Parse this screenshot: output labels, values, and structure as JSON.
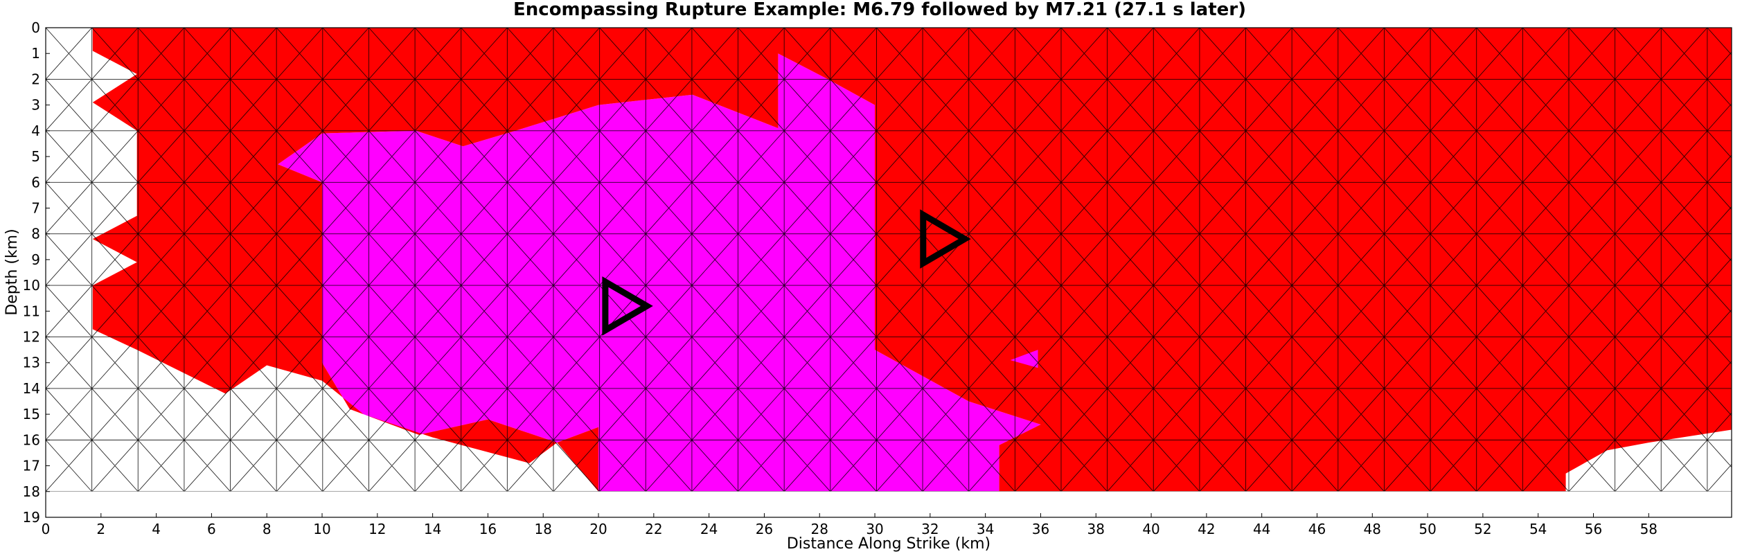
{
  "chart_data": {
    "type": "triangular-mesh-map",
    "title": "Encompassing Rupture Example: M6.79 followed by M7.21 (27.1 s later)",
    "xlabel": "Distance Along Strike (km)",
    "ylabel": "Depth (km)",
    "xlim": [
      0,
      61
    ],
    "ylim": [
      0,
      19
    ],
    "x_ticks": [
      "0",
      "2",
      "4",
      "6",
      "8",
      "10",
      "12",
      "14",
      "16",
      "18",
      "20",
      "22",
      "24",
      "26",
      "28",
      "30",
      "32",
      "34",
      "36",
      "38",
      "40",
      "42",
      "44",
      "46",
      "48",
      "50",
      "52",
      "54",
      "56",
      "58"
    ],
    "y_ticks": [
      "0",
      "1",
      "2",
      "3",
      "4",
      "5",
      "6",
      "7",
      "8",
      "9",
      "10",
      "11",
      "12",
      "13",
      "14",
      "15",
      "16",
      "17",
      "18",
      "19"
    ],
    "mesh": {
      "x_step_km": 1.67,
      "depth_step_km": 1.0,
      "x_extent_km": [
        0,
        61
      ],
      "depth_extent_km": [
        0,
        18
      ]
    },
    "colors": {
      "first_rupture": "#ff0000",
      "second_rupture": "#ff00ff",
      "unruptured": "#ffffff",
      "edge": "#000000",
      "unruptured_edge": "#9a9a9a"
    },
    "ruptures": [
      {
        "magnitude": "M6.79",
        "order": "first",
        "color": "#ff00ff",
        "hypocenter_km": [
          21.0,
          10.8
        ],
        "region_polygon": [
          [
            28.3,
            2.0
          ],
          [
            30.0,
            3.0
          ],
          [
            30.0,
            12.5
          ],
          [
            33.4,
            14.5
          ],
          [
            36.0,
            15.4
          ],
          [
            34.5,
            16.2
          ],
          [
            34.5,
            18
          ],
          [
            20.0,
            18
          ],
          [
            20.0,
            15.5
          ],
          [
            18.5,
            16.1
          ],
          [
            16.0,
            15.2
          ],
          [
            13.5,
            15.8
          ],
          [
            11.0,
            14.8
          ],
          [
            10.0,
            13.0
          ],
          [
            10.0,
            6.0
          ],
          [
            8.4,
            5.3
          ],
          [
            10.0,
            4.1
          ],
          [
            13.4,
            4.0
          ],
          [
            15.1,
            4.6
          ],
          [
            17.0,
            4.0
          ],
          [
            20.0,
            3.0
          ],
          [
            23.4,
            2.6
          ],
          [
            26.5,
            3.9
          ],
          [
            26.5,
            1.0
          ]
        ]
      },
      {
        "magnitude": "M7.21",
        "order": "second",
        "delay": "27.1 s later",
        "color": "#ff0000",
        "hypocenter_km": [
          32.5,
          8.2
        ],
        "region_polygon": [
          [
            1.7,
            0
          ],
          [
            61,
            0
          ],
          [
            61,
            15.6
          ],
          [
            58.0,
            16.1
          ],
          [
            56.5,
            16.4
          ],
          [
            55.0,
            17.3
          ],
          [
            55.0,
            18
          ],
          [
            34.5,
            18
          ],
          [
            34.5,
            16.2
          ],
          [
            36.0,
            15.4
          ],
          [
            33.4,
            14.5
          ],
          [
            30.0,
            12.5
          ],
          [
            30.0,
            3.0
          ],
          [
            28.3,
            2.0
          ],
          [
            26.5,
            1.0
          ],
          [
            26.5,
            3.9
          ],
          [
            23.4,
            2.6
          ],
          [
            20.0,
            3.0
          ],
          [
            17.0,
            4.0
          ],
          [
            15.1,
            4.6
          ],
          [
            13.4,
            4.0
          ],
          [
            10.0,
            4.1
          ],
          [
            8.4,
            5.3
          ],
          [
            10.0,
            6.0
          ],
          [
            10.0,
            13.0
          ],
          [
            11.0,
            14.8
          ],
          [
            13.5,
            15.8
          ],
          [
            16.0,
            15.2
          ],
          [
            18.5,
            16.1
          ],
          [
            20.0,
            15.5
          ],
          [
            20.0,
            18
          ],
          [
            20.0,
            18
          ],
          [
            18.5,
            16.1
          ],
          [
            17.5,
            16.9
          ],
          [
            14.0,
            15.9
          ],
          [
            11.5,
            15.0
          ],
          [
            10.0,
            13.7
          ],
          [
            8.0,
            13.1
          ],
          [
            6.5,
            14.2
          ],
          [
            3.3,
            12.5
          ],
          [
            1.7,
            11.7
          ],
          [
            1.7,
            10.0
          ],
          [
            3.3,
            9.1
          ],
          [
            1.7,
            8.2
          ],
          [
            3.3,
            7.3
          ],
          [
            3.3,
            4.0
          ],
          [
            1.7,
            2.9
          ],
          [
            3.3,
            1.8
          ],
          [
            1.7,
            0.9
          ]
        ]
      }
    ],
    "extra_patches": [
      {
        "color": "#ff00ff",
        "polygon": [
          [
            35.9,
            12.5
          ],
          [
            35.9,
            13.2
          ],
          [
            34.9,
            12.9
          ]
        ]
      }
    ],
    "grid": false
  }
}
